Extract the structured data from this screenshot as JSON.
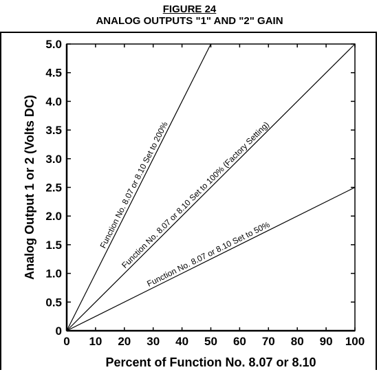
{
  "figure": {
    "number": "FIGURE 24",
    "title": "ANALOG OUTPUTS \"1\" AND \"2\" GAIN"
  },
  "chart_data": {
    "type": "line",
    "xlabel": "Percent of Function No. 8.07 or 8.10",
    "ylabel": "Analog Output 1 or 2 (Volts DC)",
    "xlim": [
      0,
      100
    ],
    "ylim": [
      0,
      5.0
    ],
    "x_ticks": [
      "0",
      "10",
      "20",
      "30",
      "40",
      "50",
      "60",
      "70",
      "80",
      "90",
      "100"
    ],
    "y_ticks": [
      "0",
      "0.5",
      "1.0",
      "1.5",
      "2.0",
      "2.5",
      "3.0",
      "3.5",
      "4.0",
      "4.5",
      "5.0"
    ],
    "grid": false,
    "series": [
      {
        "name": "Function No. 8.07 or 8.10 Set to 200%",
        "x": [
          0,
          50
        ],
        "y": [
          0,
          5.0
        ]
      },
      {
        "name": "Function No. 8.07 or 8.10 Set to 100% (Factory Setting)",
        "x": [
          0,
          100
        ],
        "y": [
          0,
          5.0
        ]
      },
      {
        "name": "Function No. 8.07 or 8.10 Set to 50%",
        "x": [
          0,
          100
        ],
        "y": [
          0,
          2.5
        ]
      }
    ]
  }
}
